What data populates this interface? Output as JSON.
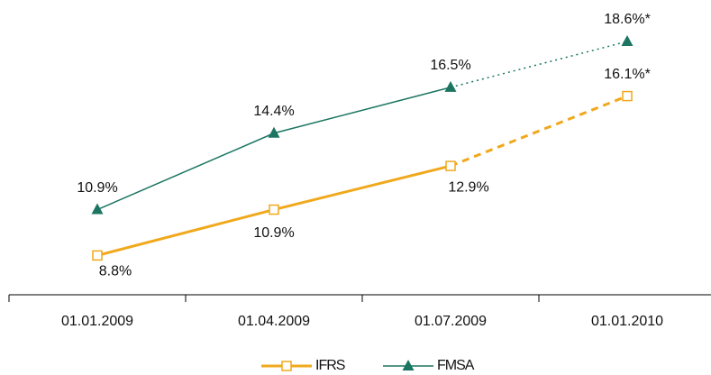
{
  "chart_data": {
    "type": "line",
    "categories": [
      "01.01.2009",
      "01.04.2009",
      "01.07.2009",
      "01.01.2010"
    ],
    "series": [
      {
        "name": "IFRS",
        "color": "#f0a81c",
        "marker": "square",
        "line_width": 3,
        "dash": "8,6",
        "dash_from": 2,
        "values": [
          8.8,
          10.9,
          12.9,
          16.1
        ],
        "value_labels": [
          "8.8%",
          "10.9%",
          "12.9%",
          "16.1%*"
        ]
      },
      {
        "name": "FMSA",
        "color": "#1b7561",
        "marker": "triangle",
        "line_width": 1.5,
        "dash": "2,4",
        "dash_from": 2,
        "values": [
          10.9,
          14.4,
          16.5,
          18.6
        ],
        "value_labels": [
          "10.9%",
          "14.4%",
          "16.5%",
          "18.6%*"
        ]
      }
    ],
    "ylim": [
      7,
      20.5
    ],
    "legend": "bottom"
  }
}
